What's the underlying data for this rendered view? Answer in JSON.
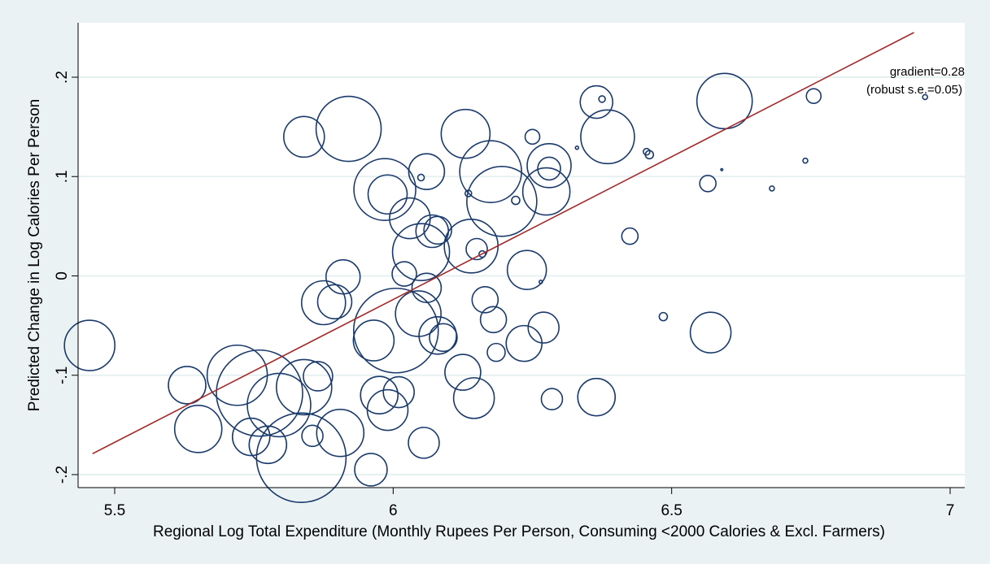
{
  "chart_data": {
    "type": "scatter",
    "title": "",
    "xlabel": "Regional Log Total Expenditure (Monthly Rupees Per Person, Consuming <2000 Calories & Excl. Farmers)",
    "ylabel": "Predicted Change in Log Calories Per Person",
    "xlim": [
      5.5,
      7.0
    ],
    "ylim": [
      -0.2,
      0.2
    ],
    "xticks": [
      {
        "value": 5.5,
        "label": "5.5"
      },
      {
        "value": 6,
        "label": "6"
      },
      {
        "value": 6.5,
        "label": "6.5"
      },
      {
        "value": 7,
        "label": "7"
      }
    ],
    "yticks": [
      {
        "value": -0.2,
        "label": "-.2"
      },
      {
        "value": -0.1,
        "label": "-.1"
      },
      {
        "value": 0,
        "label": "0"
      },
      {
        "value": 0.1,
        "label": ".1"
      },
      {
        "value": 0.2,
        "label": ".2"
      }
    ],
    "grid": true,
    "fit_line": {
      "x0": 5.46,
      "y0": -0.179,
      "x1": 6.935,
      "y1": 0.245
    },
    "annotations": [
      "gradient=0.28",
      "(robust s.e.=0.05)"
    ],
    "colors": {
      "marker": "#1a3a6b",
      "fit": "#a32a2a",
      "grid": "#e7f0f1",
      "background": "#eaf2f3",
      "plot_background": "#ffffff"
    },
    "points": [
      {
        "x": 5.455,
        "y": -0.07,
        "w": 31
      },
      {
        "x": 5.63,
        "y": -0.11,
        "w": 23
      },
      {
        "x": 5.65,
        "y": -0.154,
        "w": 29
      },
      {
        "x": 5.72,
        "y": -0.1,
        "w": 37
      },
      {
        "x": 5.76,
        "y": -0.118,
        "w": 53
      },
      {
        "x": 5.795,
        "y": -0.13,
        "w": 39
      },
      {
        "x": 5.84,
        "y": -0.112,
        "w": 34
      },
      {
        "x": 5.745,
        "y": -0.162,
        "w": 23
      },
      {
        "x": 5.775,
        "y": -0.17,
        "w": 23
      },
      {
        "x": 5.865,
        "y": -0.101,
        "w": 18
      },
      {
        "x": 5.855,
        "y": -0.161,
        "w": 13
      },
      {
        "x": 5.905,
        "y": -0.158,
        "w": 29
      },
      {
        "x": 5.835,
        "y": -0.183,
        "w": 55
      },
      {
        "x": 5.96,
        "y": -0.195,
        "w": 20
      },
      {
        "x": 5.84,
        "y": 0.14,
        "w": 25
      },
      {
        "x": 5.92,
        "y": 0.148,
        "w": 40
      },
      {
        "x": 5.875,
        "y": -0.027,
        "w": 27
      },
      {
        "x": 5.895,
        "y": -0.026,
        "w": 21
      },
      {
        "x": 5.91,
        "y": -0.001,
        "w": 21
      },
      {
        "x": 5.965,
        "y": -0.065,
        "w": 25
      },
      {
        "x": 6.005,
        "y": -0.055,
        "w": 52
      },
      {
        "x": 5.975,
        "y": -0.12,
        "w": 23
      },
      {
        "x": 5.99,
        "y": -0.135,
        "w": 25
      },
      {
        "x": 6.01,
        "y": -0.117,
        "w": 19
      },
      {
        "x": 6.055,
        "y": -0.168,
        "w": 19
      },
      {
        "x": 5.985,
        "y": 0.087,
        "w": 38
      },
      {
        "x": 5.99,
        "y": 0.082,
        "w": 24
      },
      {
        "x": 6.03,
        "y": 0.058,
        "w": 25
      },
      {
        "x": 6.05,
        "y": 0.099,
        "w": 4
      },
      {
        "x": 6.06,
        "y": 0.105,
        "w": 22
      },
      {
        "x": 6.02,
        "y": 0.002,
        "w": 15
      },
      {
        "x": 6.05,
        "y": 0.024,
        "w": 35
      },
      {
        "x": 6.06,
        "y": -0.012,
        "w": 18
      },
      {
        "x": 6.045,
        "y": -0.038,
        "w": 28
      },
      {
        "x": 6.07,
        "y": 0.045,
        "w": 20
      },
      {
        "x": 6.08,
        "y": 0.046,
        "w": 17
      },
      {
        "x": 6.08,
        "y": -0.06,
        "w": 23
      },
      {
        "x": 6.09,
        "y": -0.062,
        "w": 17
      },
      {
        "x": 6.125,
        "y": -0.097,
        "w": 22
      },
      {
        "x": 6.13,
        "y": 0.143,
        "w": 30
      },
      {
        "x": 6.135,
        "y": 0.083,
        "w": 4
      },
      {
        "x": 6.14,
        "y": 0.03,
        "w": 33
      },
      {
        "x": 6.15,
        "y": 0.027,
        "w": 13
      },
      {
        "x": 6.145,
        "y": -0.123,
        "w": 25
      },
      {
        "x": 6.16,
        "y": 0.022,
        "w": 4
      },
      {
        "x": 6.165,
        "y": -0.024,
        "w": 16
      },
      {
        "x": 6.175,
        "y": 0.105,
        "w": 38
      },
      {
        "x": 6.18,
        "y": -0.044,
        "w": 16
      },
      {
        "x": 6.185,
        "y": -0.077,
        "w": 11
      },
      {
        "x": 6.195,
        "y": 0.075,
        "w": 43
      },
      {
        "x": 6.22,
        "y": 0.076,
        "w": 5
      },
      {
        "x": 6.235,
        "y": -0.068,
        "w": 22
      },
      {
        "x": 6.24,
        "y": 0.006,
        "w": 24
      },
      {
        "x": 6.25,
        "y": 0.14,
        "w": 9
      },
      {
        "x": 6.265,
        "y": -0.006,
        "w": 2
      },
      {
        "x": 6.27,
        "y": -0.052,
        "w": 19
      },
      {
        "x": 6.28,
        "y": 0.111,
        "w": 27
      },
      {
        "x": 6.28,
        "y": 0.108,
        "w": 14
      },
      {
        "x": 6.275,
        "y": 0.085,
        "w": 29
      },
      {
        "x": 6.285,
        "y": -0.124,
        "w": 13
      },
      {
        "x": 6.33,
        "y": 0.129,
        "w": 2
      },
      {
        "x": 6.365,
        "y": 0.175,
        "w": 20
      },
      {
        "x": 6.365,
        "y": -0.122,
        "w": 23
      },
      {
        "x": 6.375,
        "y": 0.178,
        "w": 4
      },
      {
        "x": 6.385,
        "y": 0.14,
        "w": 33
      },
      {
        "x": 6.425,
        "y": 0.04,
        "w": 10
      },
      {
        "x": 6.455,
        "y": 0.125,
        "w": 4
      },
      {
        "x": 6.46,
        "y": 0.122,
        "w": 5
      },
      {
        "x": 6.485,
        "y": -0.041,
        "w": 5
      },
      {
        "x": 6.565,
        "y": 0.093,
        "w": 10
      },
      {
        "x": 6.57,
        "y": -0.057,
        "w": 25
      },
      {
        "x": 6.59,
        "y": 0.107,
        "w": 1
      },
      {
        "x": 6.595,
        "y": 0.176,
        "w": 34
      },
      {
        "x": 6.68,
        "y": 0.088,
        "w": 3
      },
      {
        "x": 6.74,
        "y": 0.116,
        "w": 3
      },
      {
        "x": 6.755,
        "y": 0.181,
        "w": 9
      },
      {
        "x": 6.955,
        "y": 0.18,
        "w": 3
      }
    ]
  }
}
